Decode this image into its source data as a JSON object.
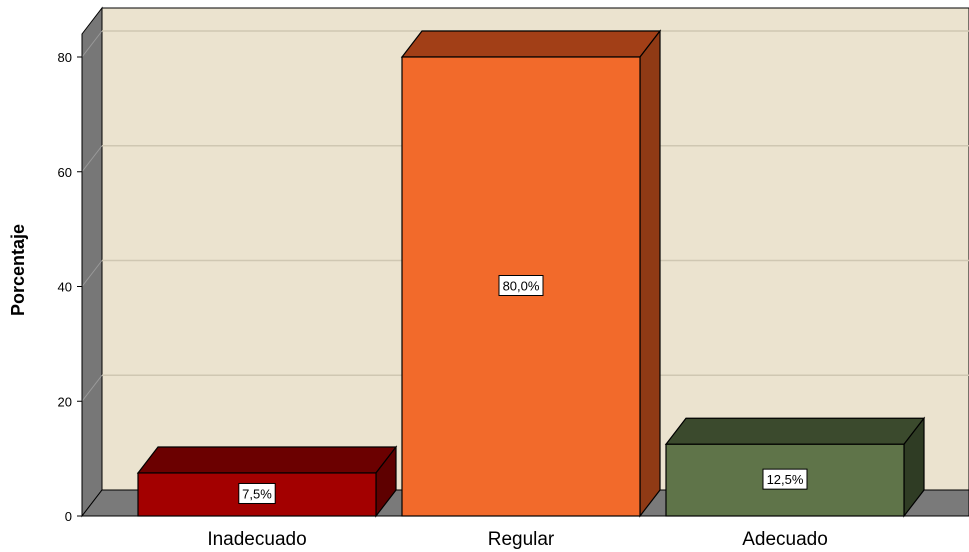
{
  "chart_data": {
    "type": "bar",
    "categories": [
      "Inadecuado",
      "Regular",
      "Adecuado"
    ],
    "values": [
      7.5,
      80.0,
      12.5
    ],
    "data_labels": [
      "7,5%",
      "80,0%",
      "12,5%"
    ],
    "ylabel": "Porcentaje",
    "xlabel": "",
    "ylim": [
      0,
      80
    ],
    "yticks": [
      "0",
      "20",
      "40",
      "60",
      "80"
    ],
    "grid": true,
    "style": "3d",
    "colors": {
      "background": "#ffffff",
      "plot_back": "#ebe3cf",
      "side_wall": "#777777",
      "floor": "#7a7a7a",
      "gridline": "#cfc7b2",
      "bars": [
        {
          "front": "#a30000",
          "top": "#6b0000",
          "side": "#5e0000"
        },
        {
          "front": "#f26a2b",
          "top": "#a23f17",
          "side": "#8f3a15"
        },
        {
          "front": "#5f7449",
          "top": "#3b4a2d",
          "side": "#2f3c24"
        }
      ]
    }
  }
}
